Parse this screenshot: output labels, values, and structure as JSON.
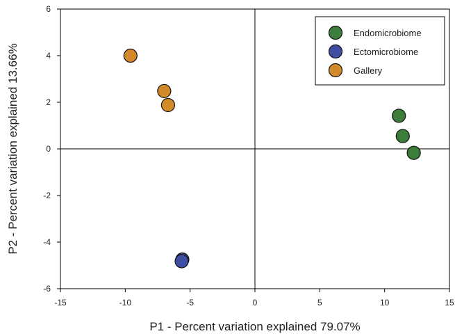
{
  "chart_data": {
    "type": "scatter",
    "title": "",
    "xlabel": "P1 - Percent variation explained 79.07%",
    "ylabel": "P2 - Percent variation explained 13.66%",
    "xlim": [
      -15,
      15
    ],
    "ylim": [
      -6,
      6
    ],
    "xticks": [
      -15,
      -10,
      -5,
      0,
      5,
      10,
      15
    ],
    "yticks": [
      -6,
      -4,
      -2,
      0,
      2,
      4,
      6
    ],
    "reference_lines": {
      "x": 0,
      "y": 0
    },
    "grid": false,
    "legend_position": "top-right",
    "series": [
      {
        "name": "Endomicrobiome",
        "color": "#3d7d3b",
        "points": [
          {
            "x": 11.1,
            "y": 1.42
          },
          {
            "x": 11.4,
            "y": 0.55
          },
          {
            "x": 12.25,
            "y": -0.17
          }
        ]
      },
      {
        "name": "Ectomicrobiome",
        "color": "#3e4fa3",
        "points": [
          {
            "x": -5.6,
            "y": -4.75
          },
          {
            "x": -5.65,
            "y": -4.82
          }
        ]
      },
      {
        "name": "Gallery",
        "color": "#d28a2a",
        "points": [
          {
            "x": -9.6,
            "y": 4.0
          },
          {
            "x": -7.0,
            "y": 2.48
          },
          {
            "x": -6.7,
            "y": 1.88
          }
        ]
      }
    ]
  }
}
